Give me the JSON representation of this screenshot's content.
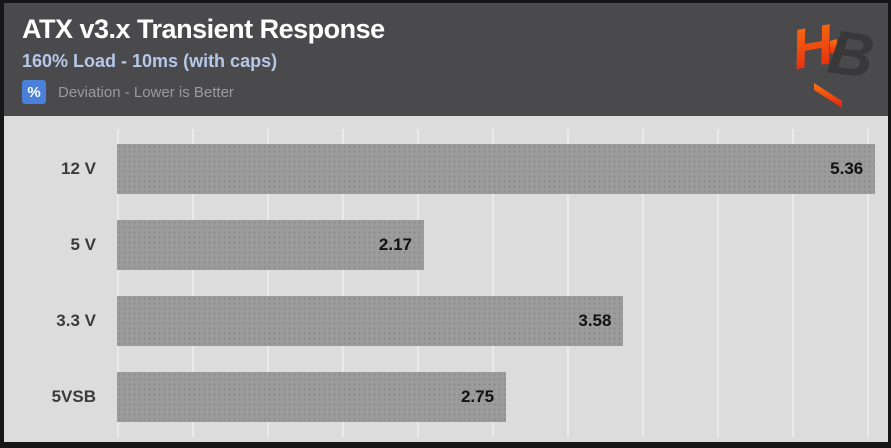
{
  "header": {
    "title": "ATX v3.x Transient Response",
    "subtitle": "160% Load - 10ms (with caps)",
    "unit_badge": "%",
    "tagline": "Deviation - Lower is Better"
  },
  "logo": {
    "letters": "HB",
    "h_color_top": "#f9750f",
    "h_color_bottom": "#e42310",
    "b_color": "#383838"
  },
  "colors": {
    "header_bg": "#4a4a4c",
    "subtitle_blue": "#b5c8e8",
    "badge_blue": "#4a80d9",
    "chart_bg": "#dcdcdc",
    "bar_gray": "#9c9c9c",
    "gridline": "#eaeaea",
    "value_text": "#121212"
  },
  "chart_data": {
    "type": "bar",
    "orientation": "horizontal",
    "title": "ATX v3.x Transient Response",
    "subtitle": "160% Load - 10ms (with caps)",
    "unit": "%",
    "note": "Deviation - Lower is Better",
    "categories": [
      "12 V",
      "5 V",
      "3.3 V",
      "5VSB"
    ],
    "values": [
      5.36,
      2.17,
      3.58,
      2.75
    ],
    "value_labels": [
      "5.36",
      "2.17",
      "3.58",
      "2.75"
    ],
    "xlabel": "",
    "ylabel": "",
    "xlim": [
      0,
      5.45
    ],
    "grid": true,
    "grid_divisions": 10,
    "legend": false,
    "value_label_position": "inside-end"
  }
}
